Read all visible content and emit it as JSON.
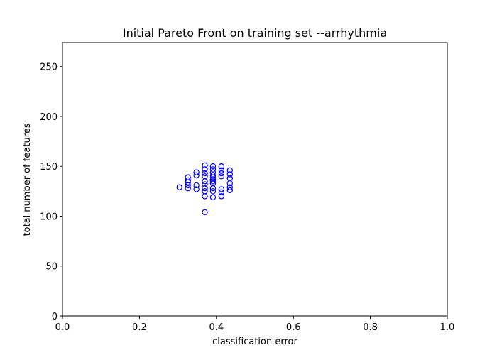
{
  "chart_data": {
    "type": "scatter",
    "title": "Initial Pareto Front on training set --arrhythmia",
    "xlabel": "classification error",
    "ylabel": "total number of features",
    "xlim": [
      0.0,
      1.0
    ],
    "ylim": [
      0,
      274
    ],
    "xticks": [
      0.0,
      0.2,
      0.4,
      0.6,
      0.8,
      1.0
    ],
    "xtick_labels": [
      "0.0",
      "0.2",
      "0.4",
      "0.6",
      "0.8",
      "1.0"
    ],
    "yticks": [
      0,
      50,
      100,
      150,
      200,
      250
    ],
    "ytick_labels": [
      "0",
      "50",
      "100",
      "150",
      "200",
      "250"
    ],
    "grid": false,
    "marker": "open-circle",
    "marker_color": "#0000ff",
    "points": [
      {
        "x": 0.304,
        "y": 129
      },
      {
        "x": 0.326,
        "y": 139
      },
      {
        "x": 0.326,
        "y": 136
      },
      {
        "x": 0.326,
        "y": 134
      },
      {
        "x": 0.326,
        "y": 131
      },
      {
        "x": 0.326,
        "y": 128
      },
      {
        "x": 0.348,
        "y": 144
      },
      {
        "x": 0.348,
        "y": 141
      },
      {
        "x": 0.348,
        "y": 131
      },
      {
        "x": 0.348,
        "y": 127
      },
      {
        "x": 0.37,
        "y": 151
      },
      {
        "x": 0.37,
        "y": 147
      },
      {
        "x": 0.37,
        "y": 143
      },
      {
        "x": 0.37,
        "y": 140
      },
      {
        "x": 0.37,
        "y": 135
      },
      {
        "x": 0.37,
        "y": 132
      },
      {
        "x": 0.37,
        "y": 128
      },
      {
        "x": 0.37,
        "y": 125
      },
      {
        "x": 0.37,
        "y": 120
      },
      {
        "x": 0.37,
        "y": 104
      },
      {
        "x": 0.391,
        "y": 150
      },
      {
        "x": 0.391,
        "y": 147
      },
      {
        "x": 0.391,
        "y": 144
      },
      {
        "x": 0.391,
        "y": 141
      },
      {
        "x": 0.391,
        "y": 139
      },
      {
        "x": 0.391,
        "y": 137
      },
      {
        "x": 0.391,
        "y": 135
      },
      {
        "x": 0.391,
        "y": 133
      },
      {
        "x": 0.391,
        "y": 128
      },
      {
        "x": 0.391,
        "y": 125
      },
      {
        "x": 0.391,
        "y": 119
      },
      {
        "x": 0.413,
        "y": 150
      },
      {
        "x": 0.413,
        "y": 146
      },
      {
        "x": 0.413,
        "y": 143
      },
      {
        "x": 0.413,
        "y": 140
      },
      {
        "x": 0.413,
        "y": 127
      },
      {
        "x": 0.413,
        "y": 124
      },
      {
        "x": 0.413,
        "y": 120
      },
      {
        "x": 0.435,
        "y": 146
      },
      {
        "x": 0.435,
        "y": 142
      },
      {
        "x": 0.435,
        "y": 138
      },
      {
        "x": 0.435,
        "y": 133
      },
      {
        "x": 0.435,
        "y": 129
      },
      {
        "x": 0.435,
        "y": 126
      }
    ]
  }
}
